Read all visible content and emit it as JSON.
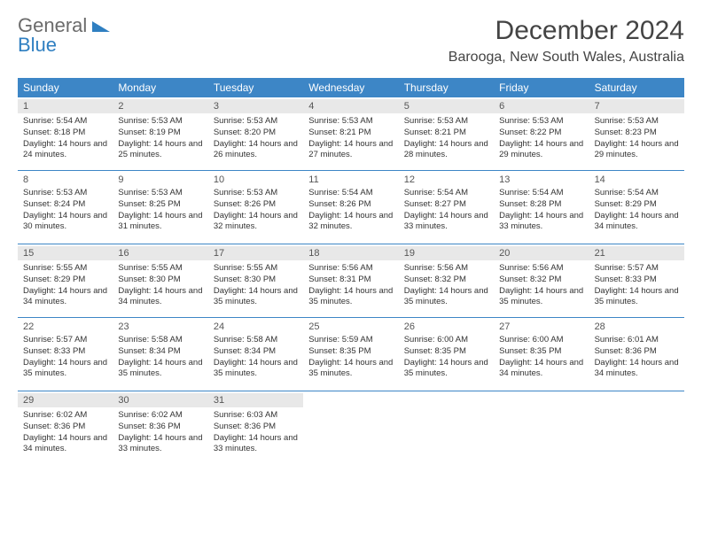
{
  "logo": {
    "line1": "General",
    "line2": "Blue"
  },
  "title": "December 2024",
  "location": "Barooga, New South Wales, Australia",
  "colors": {
    "header_bg": "#3d86c6",
    "band_bg": "#e8e8e8",
    "rule": "#3d86c6",
    "logo_gray": "#6b6b6b",
    "logo_blue": "#2f7fc1"
  },
  "dow": [
    "Sunday",
    "Monday",
    "Tuesday",
    "Wednesday",
    "Thursday",
    "Friday",
    "Saturday"
  ],
  "weeks": [
    [
      {
        "n": "1",
        "sr": "5:54 AM",
        "ss": "8:18 PM",
        "dl": "14 hours and 24 minutes."
      },
      {
        "n": "2",
        "sr": "5:53 AM",
        "ss": "8:19 PM",
        "dl": "14 hours and 25 minutes."
      },
      {
        "n": "3",
        "sr": "5:53 AM",
        "ss": "8:20 PM",
        "dl": "14 hours and 26 minutes."
      },
      {
        "n": "4",
        "sr": "5:53 AM",
        "ss": "8:21 PM",
        "dl": "14 hours and 27 minutes."
      },
      {
        "n": "5",
        "sr": "5:53 AM",
        "ss": "8:21 PM",
        "dl": "14 hours and 28 minutes."
      },
      {
        "n": "6",
        "sr": "5:53 AM",
        "ss": "8:22 PM",
        "dl": "14 hours and 29 minutes."
      },
      {
        "n": "7",
        "sr": "5:53 AM",
        "ss": "8:23 PM",
        "dl": "14 hours and 29 minutes."
      }
    ],
    [
      {
        "n": "8",
        "sr": "5:53 AM",
        "ss": "8:24 PM",
        "dl": "14 hours and 30 minutes."
      },
      {
        "n": "9",
        "sr": "5:53 AM",
        "ss": "8:25 PM",
        "dl": "14 hours and 31 minutes."
      },
      {
        "n": "10",
        "sr": "5:53 AM",
        "ss": "8:26 PM",
        "dl": "14 hours and 32 minutes."
      },
      {
        "n": "11",
        "sr": "5:54 AM",
        "ss": "8:26 PM",
        "dl": "14 hours and 32 minutes."
      },
      {
        "n": "12",
        "sr": "5:54 AM",
        "ss": "8:27 PM",
        "dl": "14 hours and 33 minutes."
      },
      {
        "n": "13",
        "sr": "5:54 AM",
        "ss": "8:28 PM",
        "dl": "14 hours and 33 minutes."
      },
      {
        "n": "14",
        "sr": "5:54 AM",
        "ss": "8:29 PM",
        "dl": "14 hours and 34 minutes."
      }
    ],
    [
      {
        "n": "15",
        "sr": "5:55 AM",
        "ss": "8:29 PM",
        "dl": "14 hours and 34 minutes."
      },
      {
        "n": "16",
        "sr": "5:55 AM",
        "ss": "8:30 PM",
        "dl": "14 hours and 34 minutes."
      },
      {
        "n": "17",
        "sr": "5:55 AM",
        "ss": "8:30 PM",
        "dl": "14 hours and 35 minutes."
      },
      {
        "n": "18",
        "sr": "5:56 AM",
        "ss": "8:31 PM",
        "dl": "14 hours and 35 minutes."
      },
      {
        "n": "19",
        "sr": "5:56 AM",
        "ss": "8:32 PM",
        "dl": "14 hours and 35 minutes."
      },
      {
        "n": "20",
        "sr": "5:56 AM",
        "ss": "8:32 PM",
        "dl": "14 hours and 35 minutes."
      },
      {
        "n": "21",
        "sr": "5:57 AM",
        "ss": "8:33 PM",
        "dl": "14 hours and 35 minutes."
      }
    ],
    [
      {
        "n": "22",
        "sr": "5:57 AM",
        "ss": "8:33 PM",
        "dl": "14 hours and 35 minutes."
      },
      {
        "n": "23",
        "sr": "5:58 AM",
        "ss": "8:34 PM",
        "dl": "14 hours and 35 minutes."
      },
      {
        "n": "24",
        "sr": "5:58 AM",
        "ss": "8:34 PM",
        "dl": "14 hours and 35 minutes."
      },
      {
        "n": "25",
        "sr": "5:59 AM",
        "ss": "8:35 PM",
        "dl": "14 hours and 35 minutes."
      },
      {
        "n": "26",
        "sr": "6:00 AM",
        "ss": "8:35 PM",
        "dl": "14 hours and 35 minutes."
      },
      {
        "n": "27",
        "sr": "6:00 AM",
        "ss": "8:35 PM",
        "dl": "14 hours and 34 minutes."
      },
      {
        "n": "28",
        "sr": "6:01 AM",
        "ss": "8:36 PM",
        "dl": "14 hours and 34 minutes."
      }
    ],
    [
      {
        "n": "29",
        "sr": "6:02 AM",
        "ss": "8:36 PM",
        "dl": "14 hours and 34 minutes."
      },
      {
        "n": "30",
        "sr": "6:02 AM",
        "ss": "8:36 PM",
        "dl": "14 hours and 33 minutes."
      },
      {
        "n": "31",
        "sr": "6:03 AM",
        "ss": "8:36 PM",
        "dl": "14 hours and 33 minutes."
      },
      null,
      null,
      null,
      null
    ]
  ],
  "labels": {
    "sunrise": "Sunrise: ",
    "sunset": "Sunset: ",
    "daylight": "Daylight: "
  }
}
